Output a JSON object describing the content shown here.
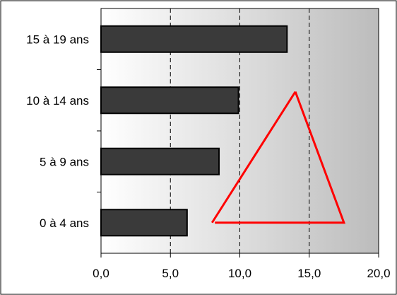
{
  "chart_data": {
    "type": "bar",
    "orientation": "horizontal",
    "categories": [
      "15 à 19 ans",
      "10 à 14 ans",
      "5 à 9 ans",
      "0 à 4 ans"
    ],
    "values": [
      13.4,
      9.9,
      8.5,
      6.2
    ],
    "x_ticks": [
      "0,0",
      "5,0",
      "10,0",
      "15,0",
      "20,0"
    ],
    "xlim": [
      0,
      20
    ],
    "bar_color": "#3a3a3a",
    "grid": "vertical dashed",
    "background": "gradient light-to-dark grey",
    "annotation": {
      "shape": "triangle",
      "color": "#ff0000",
      "points": [
        [
          14.0,
          13.6
        ],
        [
          8.0,
          35.0
        ],
        [
          17.5,
          35.0
        ]
      ]
    }
  }
}
